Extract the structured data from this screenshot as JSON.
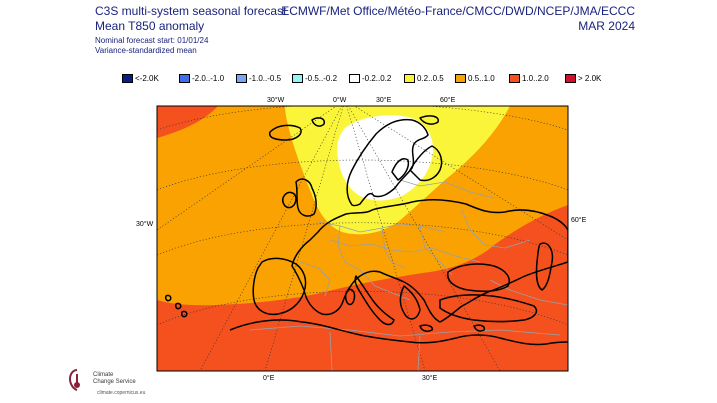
{
  "header": {
    "title_line1": "C3S multi-system seasonal forecast",
    "title_line2": "Mean T850 anomaly",
    "forecast_start": "Nominal forecast start: 01/01/24",
    "method": "Variance-standardized mean",
    "systems": "ECMWF/Met Office/Météo-France/CMCC/DWD/NCEP/JMA/ECCC",
    "valid_month": "MAR 2024"
  },
  "legend": [
    {
      "label": "<-2.0K",
      "color": "#0b1b8a"
    },
    {
      "label": "-2.0..-1.0",
      "color": "#3f6ee8"
    },
    {
      "label": "-1.0..-0.5",
      "color": "#78a6f4"
    },
    {
      "label": "-0.5..-0.2",
      "color": "#8ff5f5"
    },
    {
      "label": "-0.2..0.2",
      "color": "#ffffff"
    },
    {
      "label": "0.2..0.5",
      "color": "#fbf53a"
    },
    {
      "label": "0.5..1.0",
      "color": "#f9a202"
    },
    {
      "label": "1.0..2.0",
      "color": "#f4511e"
    },
    {
      "label": "> 2.0K",
      "color": "#d3102c"
    }
  ],
  "map_labels": {
    "top_30w": "30°W",
    "top_0w": "0°W",
    "top_30e": "30°E",
    "top_60e": "60°E",
    "left_30w": "30°W",
    "right_60e": "60°E",
    "bottom_0e": "0°E",
    "bottom_30e": "30°E"
  },
  "logo": {
    "line1": "Climate",
    "line2": "Change Service",
    "url": "climate.copernicus.eu"
  }
}
